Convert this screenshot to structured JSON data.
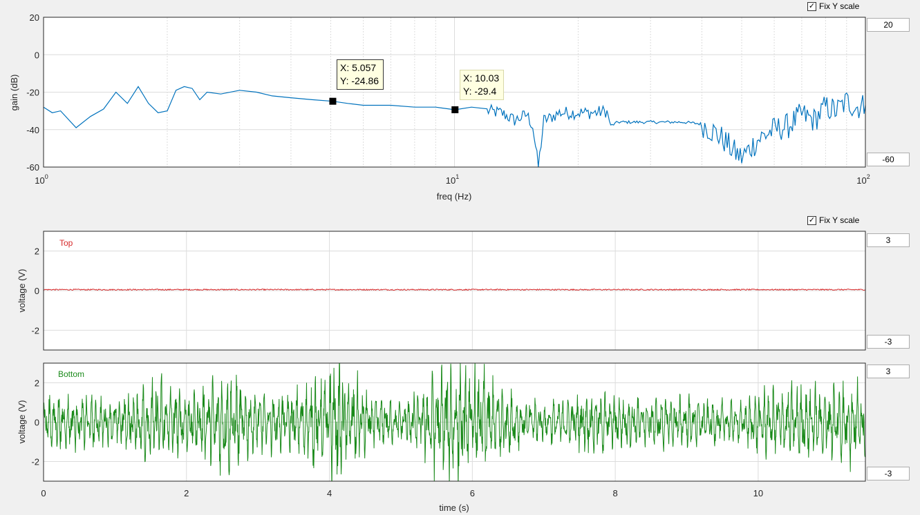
{
  "panels": {
    "spectrum": {
      "fix_y_label": "Fix Y scale",
      "fix_y_checked": true,
      "y_max_value": "20",
      "y_min_value": "-60",
      "xlabel": "freq (Hz)",
      "ylabel": "gain (dB)",
      "datatips": [
        {
          "x_label": "X: 5.057",
          "y_label": "Y: -24.86",
          "x": 5.057,
          "y": -24.86
        },
        {
          "x_label": "X: 10.03",
          "y_label": "Y: -29.4",
          "x": 10.03,
          "y": -29.4
        }
      ]
    },
    "top": {
      "fix_y_label": "Fix Y scale",
      "fix_y_checked": true,
      "y_max_value": "3",
      "y_min_value": "-3",
      "legend": "Top",
      "ylabel": "voltage (V)"
    },
    "bottom": {
      "y_max_value": "3",
      "y_min_value": "-3",
      "legend": "Bottom",
      "ylabel": "voltage (V)",
      "xlabel": "time (s)"
    }
  },
  "colors": {
    "spectrum_line": "#0072bd",
    "top_line": "#d62728",
    "bottom_line": "#1a8a1a",
    "grid": "#dcdcdc"
  },
  "chart_data": [
    {
      "type": "line",
      "name": "gain-spectrum",
      "x_scale": "log",
      "xlim": [
        1,
        100
      ],
      "ylim": [
        -60,
        20
      ],
      "xlabel": "freq (Hz)",
      "ylabel": "gain (dB)",
      "x_ticks": [
        1,
        10,
        100
      ],
      "x_tick_labels": [
        "10^0",
        "10^1",
        "10^2"
      ],
      "y_ticks": [
        -60,
        -40,
        -20,
        0,
        20
      ],
      "grid": true,
      "series": [
        {
          "x": [
            1.0,
            1.05,
            1.1,
            1.2,
            1.3,
            1.4,
            1.5,
            1.6,
            1.7,
            1.8,
            1.9,
            2.0,
            2.1,
            2.2,
            2.3,
            2.4,
            2.5,
            2.7,
            3.0,
            3.3,
            3.6,
            4.0,
            4.5,
            5.057,
            5.5,
            6.0,
            7.0,
            8.0,
            9.0,
            10.03,
            11.0,
            12.0,
            13.0,
            14.0,
            15.0,
            15.5,
            16.0,
            16.5,
            17.0,
            18.0,
            20.0,
            22.0,
            23.5,
            24.0,
            25.0,
            28.0,
            32.0,
            36.0,
            40.0,
            42.0,
            45.0,
            48.0,
            50.0,
            55.0,
            60.0,
            65.0,
            70.0,
            75.0,
            80.0,
            85.0,
            90.0,
            95.0,
            100.0
          ],
          "y": [
            -28,
            -31,
            -30,
            -39,
            -33,
            -29,
            -20,
            -26,
            -17,
            -26,
            -31,
            -30,
            -19,
            -17,
            -18,
            -24,
            -20,
            -21,
            -19,
            -20,
            -22,
            -23,
            -24,
            -24.86,
            -26,
            -27,
            -27,
            -28,
            -28,
            -29.4,
            -28,
            -30,
            -31,
            -35,
            -32,
            -38,
            -60,
            -35,
            -34,
            -31,
            -31,
            -31,
            -30,
            -38,
            -36,
            -36,
            -36,
            -36,
            -37,
            -40,
            -45,
            -52,
            -55,
            -45,
            -40,
            -38,
            -32,
            -35,
            -28,
            -30,
            -25,
            -28,
            -27
          ]
        }
      ]
    },
    {
      "type": "line",
      "name": "Top",
      "xlim": [
        0,
        11.5
      ],
      "ylim": [
        -3,
        3
      ],
      "ylabel": "voltage (V)",
      "x_ticks": [
        0,
        2,
        4,
        6,
        8,
        10
      ],
      "y_ticks": [
        -2,
        0,
        2
      ],
      "grid": true,
      "series": [
        {
          "name": "Top",
          "x_range": [
            0,
            11.5
          ],
          "y_level": 0.05,
          "y_noise_amplitude": 0.03
        }
      ]
    },
    {
      "type": "line",
      "name": "Bottom",
      "xlim": [
        0,
        11.5
      ],
      "ylim": [
        -3,
        3
      ],
      "xlabel": "time (s)",
      "ylabel": "voltage (V)",
      "x_ticks": [
        0,
        2,
        4,
        6,
        8,
        10
      ],
      "y_ticks": [
        -2,
        0,
        2
      ],
      "grid": true,
      "series": [
        {
          "name": "Bottom",
          "envelope_x": [
            0,
            0.5,
            1.0,
            1.6,
            2.1,
            2.6,
            3.1,
            3.6,
            4.1,
            4.6,
            5.0,
            5.5,
            5.8,
            6.2,
            6.7,
            7.2,
            7.7,
            8.2,
            8.7,
            9.2,
            9.7,
            10.2,
            10.7,
            11.2,
            11.5
          ],
          "envelope_amplitude": [
            1.3,
            1.2,
            1.1,
            2.3,
            1.4,
            2.4,
            1.3,
            1.6,
            3.0,
            1.3,
            0.9,
            2.6,
            3.0,
            2.5,
            1.0,
            1.0,
            1.5,
            1.2,
            1.2,
            1.1,
            0.9,
            1.7,
            1.7,
            1.9,
            2.1
          ]
        }
      ]
    }
  ]
}
